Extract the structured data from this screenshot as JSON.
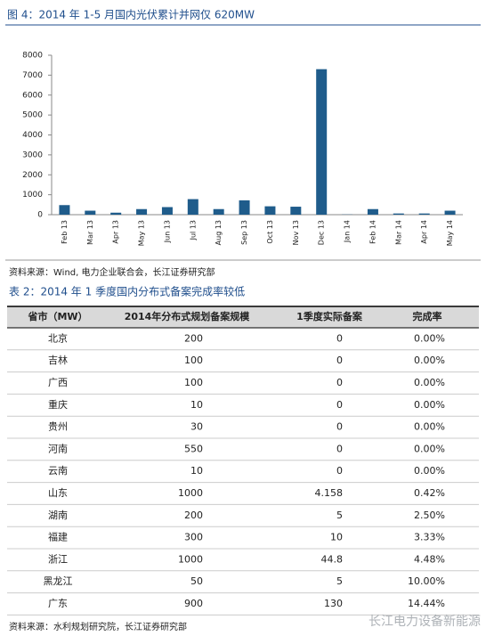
{
  "chart_data": {
    "type": "bar",
    "title": "图 4：2014 年 1-5 月国内光伏累计并网仅 620MW",
    "categories": [
      "Feb 13",
      "Mar 13",
      "Apr 13",
      "May 13",
      "Jun 13",
      "Jul 13",
      "Aug 13",
      "Sep 13",
      "Oct 13",
      "Nov 13",
      "Dec 13",
      "Jan 14",
      "Feb 14",
      "Mar 14",
      "Apr 14",
      "May 14"
    ],
    "values": [
      480,
      200,
      100,
      280,
      380,
      780,
      280,
      720,
      420,
      400,
      7300,
      10,
      280,
      60,
      60,
      200
    ],
    "color": "#1f5c8b",
    "ylim": [
      0,
      8000
    ],
    "yticks": [
      0,
      1000,
      2000,
      3000,
      4000,
      5000,
      6000,
      7000,
      8000
    ]
  },
  "source_1": "资料来源：Wind, 电力企业联合会，长江证券研究部",
  "table": {
    "caption": "表 2：2014 年 1 季度国内分布式备案完成率较低",
    "header": [
      "省市（MW）",
      "2014年分布式规划备案规模",
      "1季度实际备案",
      "完成率"
    ],
    "rows": [
      [
        "北京",
        "200",
        "0",
        "0.00%"
      ],
      [
        "吉林",
        "100",
        "0",
        "0.00%"
      ],
      [
        "广西",
        "100",
        "0",
        "0.00%"
      ],
      [
        "重庆",
        "10",
        "0",
        "0.00%"
      ],
      [
        "贵州",
        "30",
        "0",
        "0.00%"
      ],
      [
        "河南",
        "550",
        "0",
        "0.00%"
      ],
      [
        "云南",
        "10",
        "0",
        "0.00%"
      ],
      [
        "山东",
        "1000",
        "4.158",
        "0.42%"
      ],
      [
        "湖南",
        "200",
        "5",
        "2.50%"
      ],
      [
        "福建",
        "300",
        "10",
        "3.33%"
      ],
      [
        "浙江",
        "1000",
        "44.8",
        "4.48%"
      ],
      [
        "黑龙江",
        "50",
        "5",
        "10.00%"
      ],
      [
        "广东",
        "900",
        "130",
        "14.44%"
      ]
    ]
  },
  "source_2": "资料来源：水利规划研究院，长江证券研究部",
  "watermark": "长江电力设备新能源"
}
